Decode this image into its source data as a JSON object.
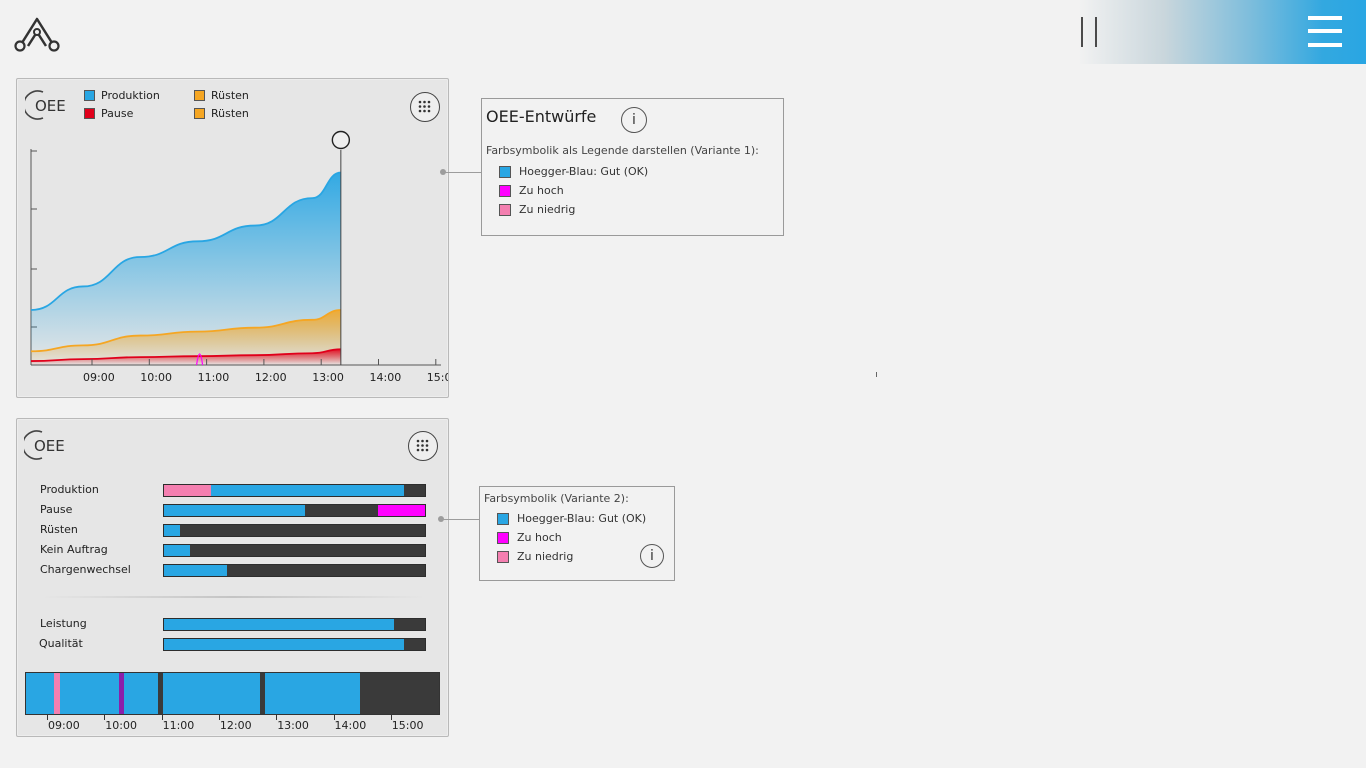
{
  "colors": {
    "produktion": "#29a6e3",
    "pause": "#e0001b",
    "ruesten": "#f5a623",
    "gut": "#29a6e3",
    "zu_hoch": "#ff00ff",
    "zu_niedrig": "#f47fb0",
    "bar_bg": "#3a3a3a"
  },
  "icons": {
    "logo": "triangle-link-logo-icon",
    "pause": "pause-icon",
    "menu": "hamburger-menu-icon",
    "grid": "dots-grid-icon",
    "info": "info-icon",
    "oee": "oee-logo-icon"
  },
  "panel1": {
    "legend": [
      {
        "label": "Produktion",
        "color": "#29a6e3"
      },
      {
        "label": "Pause",
        "color": "#e0001b"
      },
      {
        "label": "Rüsten",
        "color": "#f5a623"
      },
      {
        "label": "Rüsten",
        "color": "#f5a623"
      }
    ],
    "oee_label": "OEE"
  },
  "chart_data": {
    "type": "area",
    "x": [
      "09:00",
      "10:00",
      "11:00",
      "12:00",
      "13:00",
      "14:00",
      "15:00"
    ],
    "x_ticks": [
      "09:00",
      "10:00",
      "11:00",
      "12:00",
      "13:00",
      "14:00",
      "15:00"
    ],
    "current_time": "13:30",
    "series": [
      {
        "name": "Produktion",
        "x": [
          "08:30",
          "09:00",
          "10:00",
          "11:00",
          "12:00",
          "13:00",
          "13:30"
        ],
        "values": [
          28,
          40,
          55,
          63,
          71,
          85,
          98
        ]
      },
      {
        "name": "Rüsten",
        "x": [
          "08:30",
          "09:00",
          "10:00",
          "11:00",
          "12:00",
          "13:00",
          "13:30"
        ],
        "values": [
          7,
          10,
          15,
          17,
          19,
          23,
          28
        ]
      },
      {
        "name": "Pause",
        "x": [
          "08:30",
          "09:00",
          "10:00",
          "11:00",
          "12:00",
          "13:00",
          "13:30"
        ],
        "values": [
          2,
          3,
          4,
          4.5,
          5,
          6,
          8
        ]
      }
    ],
    "ylim": [
      0,
      110
    ],
    "grid": false
  },
  "anno1": {
    "title": "OEE-Entwürfe",
    "subtitle": "Farbsymbolik als Legende darstellen (Variante 1):",
    "items": [
      {
        "label": "Hoegger-Blau: Gut (OK)",
        "color": "#29a6e3"
      },
      {
        "label": "Zu hoch",
        "color": "#ff00ff"
      },
      {
        "label": "Zu niedrig",
        "color": "#f47fb0"
      }
    ],
    "info": "i"
  },
  "panel2": {
    "oee_label": "OEE",
    "bars": [
      {
        "label": "Produktion",
        "segments": [
          {
            "c": "#f47fb0",
            "f": 0.18
          },
          {
            "c": "#29a6e3",
            "f": 0.74
          },
          {
            "c": "#3a3a3a",
            "f": 0.08
          }
        ]
      },
      {
        "label": "Pause",
        "segments": [
          {
            "c": "#29a6e3",
            "f": 0.54
          },
          {
            "c": "#3a3a3a",
            "f": 0.28
          },
          {
            "c": "#ff00ff",
            "f": 0.18
          }
        ]
      },
      {
        "label": "Rüsten",
        "segments": [
          {
            "c": "#29a6e3",
            "f": 0.06
          },
          {
            "c": "#3a3a3a",
            "f": 0.94
          }
        ]
      },
      {
        "label": "Kein Auftrag",
        "segments": [
          {
            "c": "#29a6e3",
            "f": 0.1
          },
          {
            "c": "#3a3a3a",
            "f": 0.9
          }
        ]
      },
      {
        "label": "Chargenwechsel",
        "segments": [
          {
            "c": "#29a6e3",
            "f": 0.24
          },
          {
            "c": "#3a3a3a",
            "f": 0.76
          }
        ]
      }
    ],
    "bars2": [
      {
        "label": "Leistung",
        "segments": [
          {
            "c": "#29a6e3",
            "f": 0.88
          },
          {
            "c": "#3a3a3a",
            "f": 0.12
          }
        ]
      },
      {
        "label": "Qualität",
        "segments": [
          {
            "c": "#29a6e3",
            "f": 0.92
          },
          {
            "c": "#3a3a3a",
            "f": 0.08
          }
        ]
      }
    ],
    "timeline": {
      "segments": [
        {
          "c": "#29a6e3",
          "f": 0.07
        },
        {
          "c": "#f47fb0",
          "f": 0.015
        },
        {
          "c": "#29a6e3",
          "f": 0.145
        },
        {
          "c": "#8b1faa",
          "f": 0.012
        },
        {
          "c": "#29a6e3",
          "f": 0.085
        },
        {
          "c": "#3a3a3a",
          "f": 0.012
        },
        {
          "c": "#29a6e3",
          "f": 0.24
        },
        {
          "c": "#3a3a3a",
          "f": 0.012
        },
        {
          "c": "#29a6e3",
          "f": 0.235
        },
        {
          "c": "#3a3a3a",
          "f": 0.194
        }
      ],
      "ticks": [
        "09:00",
        "10:00",
        "11:00",
        "12:00",
        "13:00",
        "14:00",
        "15:00"
      ]
    }
  },
  "anno2": {
    "subtitle": "Farbsymbolik (Variante 2):",
    "items": [
      {
        "label": "Hoegger-Blau: Gut (OK)",
        "color": "#29a6e3"
      },
      {
        "label": "Zu hoch",
        "color": "#ff00ff"
      },
      {
        "label": "Zu niedrig",
        "color": "#f47fb0"
      }
    ],
    "info": "i"
  }
}
